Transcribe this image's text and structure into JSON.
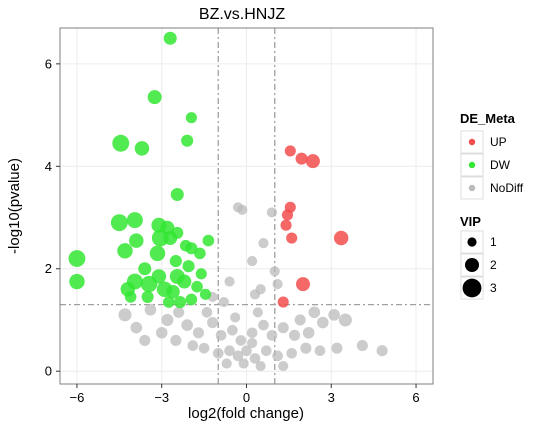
{
  "chart_data": {
    "type": "scatter",
    "title": "BZ.vs.HNJZ",
    "xlabel": "log2(fold change)",
    "ylabel": "-log10(pvalue)",
    "xlim": [
      -6.6,
      6.6
    ],
    "ylim": [
      -0.25,
      6.7
    ],
    "xticks": [
      -6,
      -3,
      0,
      3,
      6
    ],
    "yticks": [
      0,
      2,
      4,
      6
    ],
    "grid": true,
    "thresholds": {
      "x": [
        -1,
        1
      ],
      "y": 1.3
    },
    "colors": {
      "UP": "#f24d4d",
      "DW": "#33e633",
      "NoDiff": "#bbbbbb",
      "panel": "#ffffff",
      "threshold_line": "#a0a0a0"
    },
    "legend": {
      "position": "right",
      "color_title": "DE_Meta",
      "color_items": [
        {
          "label": "UP",
          "key": "UP"
        },
        {
          "label": "DW",
          "key": "DW"
        },
        {
          "label": "NoDiff",
          "key": "NoDiff"
        }
      ],
      "size_title": "VIP",
      "size_items": [
        {
          "label": "1",
          "vip": 1
        },
        {
          "label": "2",
          "vip": 2
        },
        {
          "label": "3",
          "vip": 3
        }
      ]
    },
    "series": [
      {
        "name": "UP",
        "points": [
          [
            1.55,
            4.3,
            1.4
          ],
          [
            1.95,
            4.15,
            1.6
          ],
          [
            2.35,
            4.1,
            2.0
          ],
          [
            3.35,
            2.6,
            2.1
          ],
          [
            1.55,
            3.2,
            1.4
          ],
          [
            1.45,
            3.05,
            1.4
          ],
          [
            1.4,
            2.85,
            1.4
          ],
          [
            1.6,
            2.6,
            1.4
          ],
          [
            2.0,
            1.7,
            2.0
          ],
          [
            1.3,
            1.35,
            1.4
          ]
        ]
      },
      {
        "name": "DW",
        "points": [
          [
            -2.7,
            6.5,
            1.8
          ],
          [
            -3.25,
            5.35,
            2.0
          ],
          [
            -4.45,
            4.45,
            2.6
          ],
          [
            -1.95,
            4.95,
            1.4
          ],
          [
            -3.7,
            4.35,
            2.1
          ],
          [
            -2.1,
            4.5,
            1.6
          ],
          [
            -2.45,
            3.45,
            1.8
          ],
          [
            -6.0,
            2.2,
            2.6
          ],
          [
            -6.0,
            1.75,
            2.3
          ],
          [
            -4.5,
            2.9,
            2.6
          ],
          [
            -3.95,
            2.95,
            2.4
          ],
          [
            -3.9,
            2.55,
            2.1
          ],
          [
            -3.1,
            2.85,
            2.2
          ],
          [
            -2.8,
            2.8,
            2.0
          ],
          [
            -3.05,
            2.6,
            2.6
          ],
          [
            -3.15,
            2.3,
            2.3
          ],
          [
            -2.7,
            2.6,
            2.0
          ],
          [
            -2.45,
            2.7,
            1.6
          ],
          [
            -4.3,
            2.35,
            2.3
          ],
          [
            -3.6,
            2.0,
            1.8
          ],
          [
            -3.95,
            1.75,
            2.4
          ],
          [
            -4.2,
            1.6,
            2.1
          ],
          [
            -3.45,
            1.7,
            2.5
          ],
          [
            -3.1,
            1.85,
            2.1
          ],
          [
            -2.9,
            1.6,
            2.3
          ],
          [
            -2.45,
            1.85,
            2.2
          ],
          [
            -2.2,
            1.75,
            2.0
          ],
          [
            -2.6,
            1.55,
            1.9
          ],
          [
            -1.95,
            2.4,
            1.6
          ],
          [
            -1.65,
            2.3,
            1.5
          ],
          [
            -1.35,
            2.55,
            1.5
          ],
          [
            -2.05,
            2.05,
            1.6
          ],
          [
            -1.75,
            1.65,
            1.5
          ],
          [
            -2.35,
            1.35,
            1.6
          ],
          [
            -1.95,
            1.4,
            1.5
          ],
          [
            -1.45,
            1.5,
            1.4
          ],
          [
            -4.1,
            1.45,
            1.5
          ],
          [
            -3.5,
            1.45,
            1.6
          ],
          [
            -2.15,
            2.45,
            1.5
          ],
          [
            -2.75,
            1.35,
            1.5
          ],
          [
            -1.6,
            1.9,
            1.4
          ],
          [
            -2.5,
            2.15,
            1.6
          ]
        ]
      },
      {
        "name": "NoDiff",
        "points": [
          [
            -0.3,
            3.2,
            1.2
          ],
          [
            -0.15,
            3.15,
            1.2
          ],
          [
            0.9,
            3.1,
            1.2
          ],
          [
            0.6,
            2.5,
            1.2
          ],
          [
            0.2,
            2.15,
            1.2
          ],
          [
            -0.6,
            1.75,
            1.2
          ],
          [
            1.0,
            1.95,
            1.2
          ],
          [
            0.5,
            1.6,
            1.2
          ],
          [
            -1.2,
            1.45,
            1.2
          ],
          [
            -0.8,
            1.35,
            1.2
          ],
          [
            0.3,
            1.5,
            1.2
          ],
          [
            1.1,
            1.7,
            1.2
          ],
          [
            -4.3,
            1.1,
            1.8
          ],
          [
            -3.4,
            1.2,
            1.5
          ],
          [
            -2.8,
            1.0,
            1.6
          ],
          [
            -2.4,
            1.15,
            1.4
          ],
          [
            -3.9,
            0.85,
            1.5
          ],
          [
            -3.0,
            0.75,
            1.5
          ],
          [
            -2.1,
            0.9,
            1.5
          ],
          [
            -1.7,
            0.75,
            1.4
          ],
          [
            -1.2,
            0.95,
            1.4
          ],
          [
            -0.9,
            0.7,
            1.3
          ],
          [
            -0.5,
            0.8,
            1.3
          ],
          [
            -0.2,
            0.6,
            1.3
          ],
          [
            0.2,
            0.75,
            1.3
          ],
          [
            0.6,
            0.9,
            1.3
          ],
          [
            0.9,
            0.7,
            1.3
          ],
          [
            1.3,
            0.85,
            1.4
          ],
          [
            1.7,
            0.7,
            1.4
          ],
          [
            2.2,
            0.75,
            1.5
          ],
          [
            2.7,
            0.95,
            1.5
          ],
          [
            3.1,
            1.1,
            1.5
          ],
          [
            3.5,
            1.0,
            1.8
          ],
          [
            2.4,
            1.15,
            1.5
          ],
          [
            -1.5,
            0.45,
            1.3
          ],
          [
            -1.0,
            0.35,
            1.3
          ],
          [
            -0.6,
            0.4,
            1.3
          ],
          [
            -0.3,
            0.3,
            1.3
          ],
          [
            0.0,
            0.4,
            1.3
          ],
          [
            0.3,
            0.25,
            1.3
          ],
          [
            0.7,
            0.4,
            1.3
          ],
          [
            1.1,
            0.3,
            1.3
          ],
          [
            1.6,
            0.35,
            1.3
          ],
          [
            2.1,
            0.45,
            1.4
          ],
          [
            2.6,
            0.4,
            1.3
          ],
          [
            3.2,
            0.45,
            1.4
          ],
          [
            4.1,
            0.5,
            1.4
          ],
          [
            4.8,
            0.4,
            1.4
          ],
          [
            -0.1,
            0.15,
            1.2
          ],
          [
            0.5,
            0.1,
            1.2
          ],
          [
            -0.7,
            0.15,
            1.2
          ],
          [
            1.3,
            0.1,
            1.2
          ],
          [
            -1.9,
            0.5,
            1.3
          ],
          [
            -2.5,
            0.6,
            1.4
          ],
          [
            -3.6,
            0.6,
            1.4
          ],
          [
            0.2,
            0.55,
            1.2
          ],
          [
            -0.4,
            1.05,
            1.2
          ],
          [
            0.4,
            1.15,
            1.2
          ],
          [
            -1.4,
            1.15,
            1.3
          ],
          [
            1.9,
            1.0,
            1.4
          ]
        ]
      }
    ]
  }
}
